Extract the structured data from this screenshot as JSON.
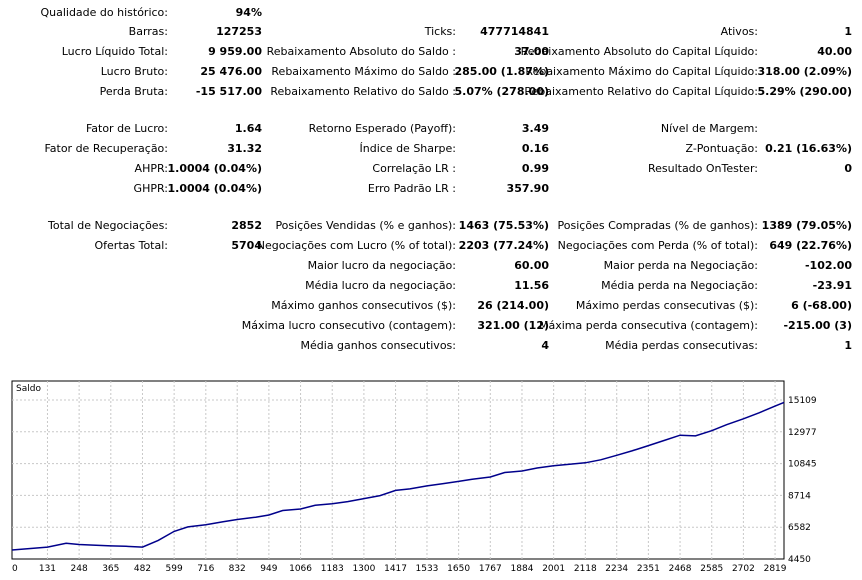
{
  "stats": {
    "qualidade": {
      "label": "Qualidade do histórico:",
      "value": "94%"
    },
    "barras": {
      "label": "Barras:",
      "value": "127253"
    },
    "ticks": {
      "label": "Ticks:",
      "value": "477714841"
    },
    "ativos": {
      "label": "Ativos:",
      "value": "1"
    },
    "lucro_liquido": {
      "label": "Lucro Líquido Total:",
      "value": "9 959.00"
    },
    "rebaix_abs_saldo": {
      "label": "Rebaixamento Absoluto do Saldo :",
      "value": "37.00"
    },
    "rebaix_abs_capital": {
      "label": "Rebaixamento Absoluto do Capital Líquido:",
      "value": "40.00"
    },
    "lucro_bruto": {
      "label": "Lucro Bruto:",
      "value": "25 476.00"
    },
    "rebaix_max_saldo": {
      "label": "Rebaixamento Máximo do Saldo :",
      "value": "285.00 (1.87%)"
    },
    "rebaix_max_capital": {
      "label": "Rebaixamento Máximo do Capital Líquido:",
      "value": "318.00 (2.09%)"
    },
    "perda_bruta": {
      "label": "Perda Bruta:",
      "value": "-15 517.00"
    },
    "rebaix_rel_saldo": {
      "label": "Rebaixamento Relativo do Saldo :",
      "value": "5.07% (278.00)"
    },
    "rebaix_rel_capital": {
      "label": "Rebaixamento Relativo do Capital Líquido:",
      "value": "5.29% (290.00)"
    },
    "fator_lucro": {
      "label": "Fator de Lucro:",
      "value": "1.64"
    },
    "retorno_esperado": {
      "label": "Retorno Esperado (Payoff):",
      "value": "3.49"
    },
    "nivel_margem": {
      "label": "Nível de Margem:",
      "value": ""
    },
    "fator_recuperacao": {
      "label": "Fator de Recuperação:",
      "value": "31.32"
    },
    "sharpe": {
      "label": "Índice de Sharpe:",
      "value": "0.16"
    },
    "z_pontuacao": {
      "label": "Z-Pontuação:",
      "value": "0.21 (16.63%)"
    },
    "ahpr": {
      "label": "AHPR:",
      "value": "1.0004 (0.04%)"
    },
    "correlacao_lr": {
      "label": "Correlação LR :",
      "value": "0.99"
    },
    "resultado_ontester": {
      "label": "Resultado OnTester:",
      "value": "0"
    },
    "ghpr": {
      "label": "GHPR:",
      "value": "1.0004 (0.04%)"
    },
    "erro_padrao_lr": {
      "label": "Erro Padrão LR :",
      "value": "357.90"
    },
    "total_negociacoes": {
      "label": "Total de Negociações:",
      "value": "2852"
    },
    "posicoes_vendidas": {
      "label": "Posições Vendidas (% e ganhos):",
      "value": "1463 (75.53%)"
    },
    "posicoes_compradas": {
      "label": "Posições Compradas (% de ganhos):",
      "value": "1389 (79.05%)"
    },
    "ofertas_total": {
      "label": "Ofertas Total:",
      "value": "5704"
    },
    "neg_com_lucro": {
      "label": "Negociações com Lucro (% of total):",
      "value": "2203 (77.24%)"
    },
    "neg_com_perda": {
      "label": "Negociações com Perda (% of total):",
      "value": "649 (22.76%)"
    },
    "maior_lucro": {
      "label": "Maior lucro da negociação:",
      "value": "60.00"
    },
    "maior_perda": {
      "label": "Maior perda na Negociação:",
      "value": "-102.00"
    },
    "media_lucro": {
      "label": "Média lucro da negociação:",
      "value": "11.56"
    },
    "media_perda": {
      "label": "Média perda na Negociação:",
      "value": "-23.91"
    },
    "max_ganhos_consec": {
      "label": "Máximo ganhos consecutivos ($):",
      "value": "26 (214.00)"
    },
    "max_perdas_consec": {
      "label": "Máximo perdas consecutivas ($):",
      "value": "6 (-68.00)"
    },
    "max_lucro_consec_cont": {
      "label": "Máxima lucro consecutivo (contagem):",
      "value": "321.00 (12)"
    },
    "max_perda_consec_cont": {
      "label": "Máxima perda consecutiva (contagem):",
      "value": "-215.00 (3)"
    },
    "media_ganhos_consec": {
      "label": "Média ganhos consecutivos:",
      "value": "4"
    },
    "media_perdas_consec": {
      "label": "Média perdas consecutivas:",
      "value": "1"
    }
  },
  "colors": {
    "line": "#00008b",
    "grid": "#c8c8c8",
    "frame": "#000000"
  },
  "chart_data": {
    "type": "line",
    "title": "Saldo",
    "xlabel": "",
    "ylabel": "",
    "xlim": [
      0,
      2852
    ],
    "ylim": [
      4450,
      15109
    ],
    "x_ticks": [
      "0",
      "131",
      "248",
      "365",
      "482",
      "599",
      "716",
      "832",
      "949",
      "1066",
      "1183",
      "1300",
      "1417",
      "1533",
      "1650",
      "1767",
      "1884",
      "2001",
      "2118",
      "2234",
      "2351",
      "2468",
      "2585",
      "2702",
      "2819"
    ],
    "y_ticks": [
      "15109",
      "12977",
      "10845",
      "8714",
      "6582",
      "4450"
    ],
    "grid": true,
    "series": [
      {
        "x": [
          0,
          131,
          200,
          248,
          300,
          365,
          420,
          482,
          540,
          599,
          650,
          716,
          780,
          832,
          900,
          949,
          1000,
          1066,
          1120,
          1183,
          1240,
          1300,
          1360,
          1417,
          1470,
          1533,
          1590,
          1650,
          1700,
          1767,
          1820,
          1884,
          1940,
          2001,
          2060,
          2118,
          2175,
          2234,
          2290,
          2351,
          2410,
          2468,
          2525,
          2585,
          2640,
          2702,
          2760,
          2819,
          2852
        ],
        "values": [
          5050,
          5250,
          5500,
          5420,
          5380,
          5330,
          5300,
          5250,
          5700,
          6300,
          6600,
          6750,
          6950,
          7100,
          7250,
          7400,
          7700,
          7800,
          8050,
          8150,
          8300,
          8500,
          8700,
          9050,
          9150,
          9350,
          9500,
          9650,
          9800,
          9950,
          10250,
          10350,
          10550,
          10700,
          10800,
          10900,
          11100,
          11400,
          11700,
          12050,
          12400,
          12750,
          12700,
          13050,
          13450,
          13850,
          14250,
          14700,
          14950
        ]
      }
    ]
  }
}
